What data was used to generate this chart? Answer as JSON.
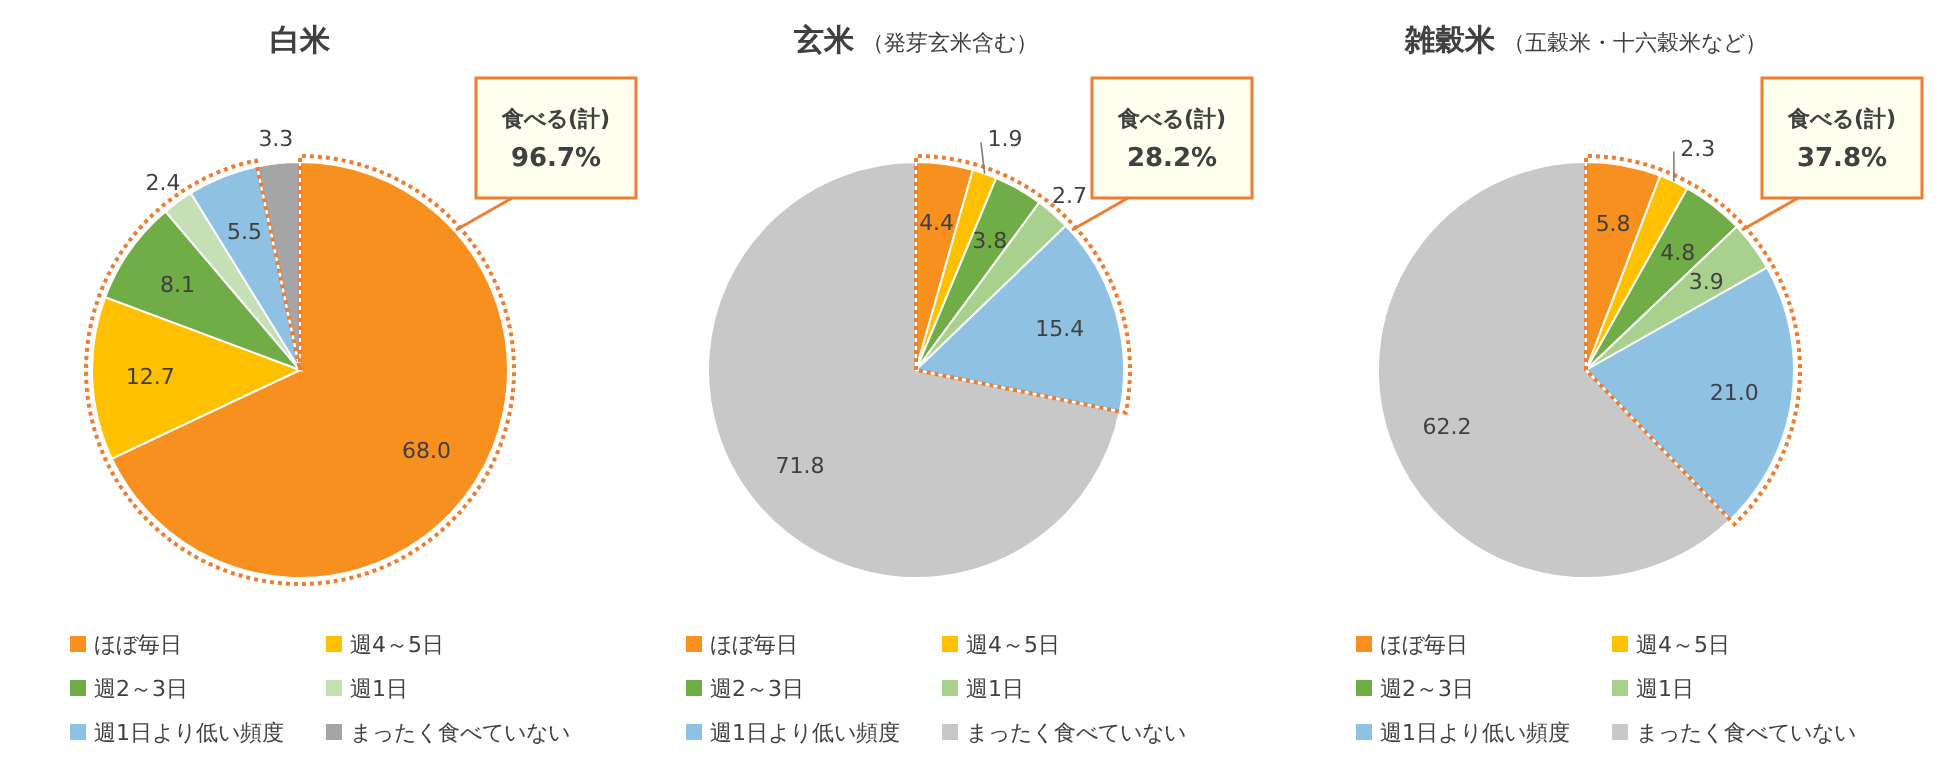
{
  "chart_data": [
    {
      "type": "pie",
      "title": "白米",
      "categories": [
        "ほぼ毎日",
        "週4～5日",
        "週2～3日",
        "週1日",
        "週1日より低い頻度",
        "まったく食べていない"
      ],
      "values": [
        68.0,
        12.7,
        8.1,
        2.4,
        5.5,
        3.3
      ],
      "colors": [
        "#f7901e",
        "#ffc000",
        "#70ad47",
        "#c5e0b4",
        "#8fc1e3",
        "#a5a5a5"
      ],
      "value_labels": [
        "68.0",
        "12.7",
        "8.1",
        "2.4",
        "5.5",
        "3.3"
      ],
      "legend": "bottom",
      "annotations": [
        "食べる(計)",
        "96.7%"
      ]
    },
    {
      "type": "pie",
      "title": "玄米",
      "subtitle": "（発芽玄米含む）",
      "categories": [
        "ほぼ毎日",
        "週4～5日",
        "週2～3日",
        "週1日",
        "週1日より低い頻度",
        "まったく食べていない"
      ],
      "values": [
        4.4,
        1.9,
        3.8,
        2.7,
        15.4,
        71.8
      ],
      "colors": [
        "#f7901e",
        "#ffc000",
        "#70ad47",
        "#a9d18e",
        "#8fc1e3",
        "#c8c8c8"
      ],
      "value_labels": [
        "4.4",
        "1.9",
        "3.8",
        "2.7",
        "15.4",
        "71.8"
      ],
      "legend": "bottom",
      "annotations": [
        "食べる(計)",
        "28.2%"
      ]
    },
    {
      "type": "pie",
      "title": "雑穀米",
      "subtitle": "（五穀米・十六穀米など）",
      "categories": [
        "ほぼ毎日",
        "週4～5日",
        "週2～3日",
        "週1日",
        "週1日より低い頻度",
        "まったく食べていない"
      ],
      "values": [
        5.8,
        2.3,
        4.8,
        3.9,
        21.0,
        62.2
      ],
      "colors": [
        "#f7901e",
        "#ffc000",
        "#70ad47",
        "#a9d18e",
        "#8fc1e3",
        "#c8c8c8"
      ],
      "value_labels": [
        "5.8",
        "2.3",
        "4.8",
        "3.9",
        "21.0",
        "62.2"
      ],
      "legend": "bottom",
      "annotations": [
        "食べる(計)",
        "37.8%"
      ]
    }
  ]
}
